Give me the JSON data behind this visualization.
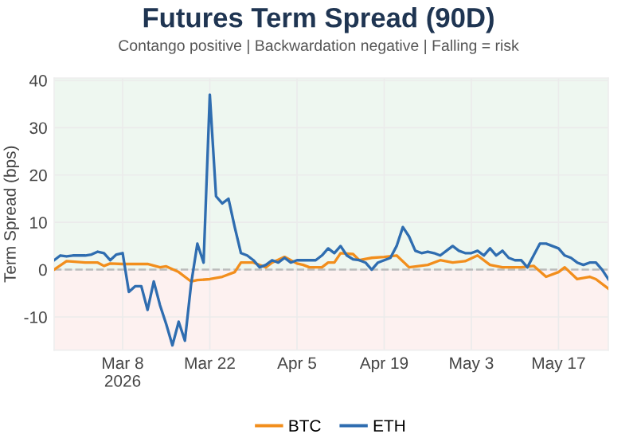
{
  "chart_data": {
    "type": "line",
    "title": "Futures Term Spread (90D)",
    "subtitle": "Contango positive | Backwardation negative | Falling = risk",
    "ylabel": "Term Spread (bps)",
    "xlim": [
      "2026-02-25",
      "2026-05-25"
    ],
    "xticks": [
      {
        "value": "2026-03-08",
        "label": "Mar 8\n2026"
      },
      {
        "value": "2026-03-22",
        "label": "Mar 22"
      },
      {
        "value": "2026-04-05",
        "label": "Apr 5"
      },
      {
        "value": "2026-04-19",
        "label": "Apr 19"
      },
      {
        "value": "2026-05-03",
        "label": "May 3"
      },
      {
        "value": "2026-05-17",
        "label": "May 17"
      }
    ],
    "ylim": [
      -17,
      40.5
    ],
    "yticks": [
      -10,
      0,
      10,
      20,
      30,
      40
    ],
    "grid": true,
    "legend": "bottom",
    "line_style": "solid",
    "bands": [
      {
        "axis": "y",
        "from": 0,
        "to": 40.5,
        "color": "#eef7f0"
      },
      {
        "axis": "y",
        "from": -17,
        "to": 0,
        "color": "#fdf1f0"
      }
    ],
    "ref_lines": [
      {
        "axis": "y",
        "value": 0,
        "color": "#bbbbbb",
        "line_style": "dashed"
      }
    ],
    "series": [
      {
        "name": "BTC",
        "color": "#f28e1c",
        "x": [
          "2026-02-25",
          "2026-02-27",
          "2026-03-02",
          "2026-03-04",
          "2026-03-05",
          "2026-03-06",
          "2026-03-08",
          "2026-03-12",
          "2026-03-14",
          "2026-03-15",
          "2026-03-17",
          "2026-03-19",
          "2026-03-20",
          "2026-03-22",
          "2026-03-24",
          "2026-03-26",
          "2026-03-27",
          "2026-03-29",
          "2026-03-31",
          "2026-04-01",
          "2026-04-03",
          "2026-04-05",
          "2026-04-06",
          "2026-04-07",
          "2026-04-09",
          "2026-04-10",
          "2026-04-11",
          "2026-04-12",
          "2026-04-14",
          "2026-04-15",
          "2026-04-17",
          "2026-04-19",
          "2026-04-21",
          "2026-04-23",
          "2026-04-26",
          "2026-04-28",
          "2026-04-30",
          "2026-05-02",
          "2026-05-04",
          "2026-05-06",
          "2026-05-08",
          "2026-05-11",
          "2026-05-13",
          "2026-05-15",
          "2026-05-17",
          "2026-05-18",
          "2026-05-20",
          "2026-05-22",
          "2026-05-23",
          "2026-05-25"
        ],
        "values": [
          0,
          1.8,
          1.5,
          1.5,
          0.8,
          1.3,
          1.2,
          1.2,
          0.5,
          0.7,
          -0.5,
          -2.5,
          -2.2,
          -2,
          -1.5,
          -0.5,
          1.5,
          1.5,
          0.5,
          1.5,
          2.7,
          1.3,
          1,
          0.5,
          0.5,
          1.5,
          1.5,
          3.5,
          3.3,
          2,
          2.5,
          2.7,
          3,
          0.5,
          1,
          2,
          1.5,
          1.8,
          3,
          1,
          0.5,
          0.5,
          0.8,
          -1.5,
          -0.5,
          0.5,
          -2,
          -1.5,
          -2,
          -4
        ]
      },
      {
        "name": "ETH",
        "color": "#2f6db0",
        "x": [
          "2026-02-25",
          "2026-02-26",
          "2026-02-27",
          "2026-02-28",
          "2026-03-01",
          "2026-03-02",
          "2026-03-03",
          "2026-03-04",
          "2026-03-05",
          "2026-03-06",
          "2026-03-07",
          "2026-03-08",
          "2026-03-09",
          "2026-03-10",
          "2026-03-11",
          "2026-03-12",
          "2026-03-13",
          "2026-03-14",
          "2026-03-15",
          "2026-03-16",
          "2026-03-17",
          "2026-03-18",
          "2026-03-19",
          "2026-03-20",
          "2026-03-21",
          "2026-03-22",
          "2026-03-23",
          "2026-03-24",
          "2026-03-25",
          "2026-03-26",
          "2026-03-27",
          "2026-03-28",
          "2026-03-29",
          "2026-03-30",
          "2026-03-31",
          "2026-04-01",
          "2026-04-02",
          "2026-04-03",
          "2026-04-04",
          "2026-04-05",
          "2026-04-06",
          "2026-04-07",
          "2026-04-08",
          "2026-04-09",
          "2026-04-10",
          "2026-04-11",
          "2026-04-12",
          "2026-04-13",
          "2026-04-14",
          "2026-04-15",
          "2026-04-16",
          "2026-04-17",
          "2026-04-18",
          "2026-04-19",
          "2026-04-20",
          "2026-04-21",
          "2026-04-22",
          "2026-04-23",
          "2026-04-24",
          "2026-04-25",
          "2026-04-26",
          "2026-04-27",
          "2026-04-28",
          "2026-04-29",
          "2026-04-30",
          "2026-05-01",
          "2026-05-02",
          "2026-05-03",
          "2026-05-04",
          "2026-05-05",
          "2026-05-06",
          "2026-05-07",
          "2026-05-08",
          "2026-05-09",
          "2026-05-10",
          "2026-05-11",
          "2026-05-12",
          "2026-05-13",
          "2026-05-14",
          "2026-05-15",
          "2026-05-16",
          "2026-05-17",
          "2026-05-18",
          "2026-05-19",
          "2026-05-20",
          "2026-05-21",
          "2026-05-22",
          "2026-05-23",
          "2026-05-24",
          "2026-05-25"
        ],
        "values": [
          2,
          3,
          2.8,
          3,
          3,
          3,
          3.2,
          3.8,
          3.5,
          2,
          3.2,
          3.5,
          -4.7,
          -3.5,
          -3.5,
          -8.5,
          -2.5,
          -7.5,
          -11.5,
          -16,
          -11,
          -15,
          -3,
          5.5,
          1.5,
          37,
          15.5,
          14,
          15,
          9,
          3.5,
          3,
          2,
          0.5,
          1,
          2,
          1.5,
          2.5,
          1.5,
          2,
          2,
          2,
          2,
          3,
          4.5,
          3.5,
          5,
          3,
          2.2,
          2,
          1.5,
          0,
          1.5,
          2,
          2.5,
          5,
          9,
          7,
          4,
          3.5,
          3.8,
          3.5,
          3,
          4,
          5,
          4,
          3.5,
          3.5,
          4,
          3,
          4.5,
          3,
          4,
          2.5,
          2,
          2,
          0.5,
          3,
          5.5,
          5.5,
          5,
          4.5,
          3,
          2.5,
          1.5,
          1,
          1.5,
          1.5,
          0,
          -2
        ]
      }
    ]
  }
}
